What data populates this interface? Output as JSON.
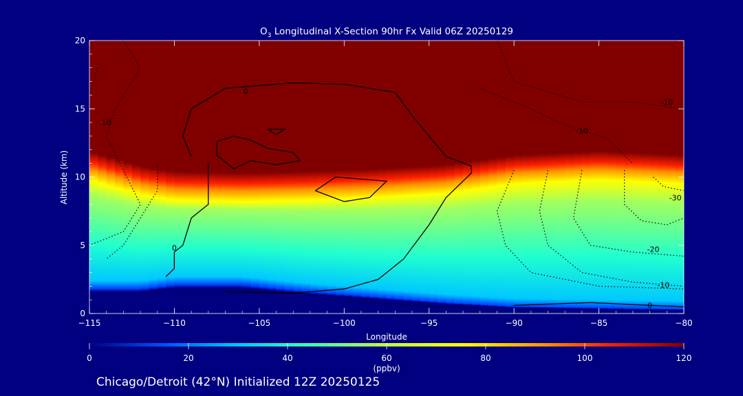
{
  "figure": {
    "title_species": "O",
    "title_sub": "3",
    "title_rest": " Longitudinal X-Section 90hr  Fx Valid 06Z 20250129",
    "footer": "Chicago/Detroit (42°N) Initialized 12Z 20250125",
    "background": "#000080"
  },
  "chart_data": {
    "type": "heatmap",
    "title": "O3 Longitudinal X-Section 90hr  Fx Valid 06Z 20250129",
    "xlabel": "Longitude",
    "ylabel": "Altitude (km)",
    "xlim": [
      -115,
      -80
    ],
    "ylim": [
      0,
      20
    ],
    "xticks": [
      -115,
      -110,
      -105,
      -100,
      -95,
      -90,
      -85,
      -80
    ],
    "xtick_labels": [
      "−115",
      "−110",
      "−105",
      "−100",
      "−95",
      "−90",
      "−85",
      "−80"
    ],
    "yticks": [
      0,
      5,
      10,
      15,
      20
    ],
    "ytick_labels": [
      "0",
      "5",
      "10",
      "15",
      "20"
    ],
    "colorbar": {
      "label": "(ppbv)",
      "min": 0,
      "max": 120,
      "ticks": [
        0,
        20,
        40,
        60,
        80,
        100,
        120
      ],
      "tick_labels": [
        "0",
        "20",
        "40",
        "60",
        "80",
        "100",
        "120"
      ],
      "colors": [
        "#000080",
        "#0050ff",
        "#00c8ff",
        "#40ffb0",
        "#c0ff40",
        "#ffff00",
        "#ffa000",
        "#ff2000",
        "#800000"
      ]
    },
    "ozone_profiles": [
      {
        "lon": -115,
        "surface": 1.8,
        "tropopause": 11.3
      },
      {
        "lon": -112,
        "surface": 1.8,
        "tropopause": 10.2
      },
      {
        "lon": -110,
        "surface": 2.1,
        "tropopause": 9.8
      },
      {
        "lon": -106,
        "surface": 2.1,
        "tropopause": 9.7
      },
      {
        "lon": -102,
        "surface": 1.6,
        "tropopause": 9.8
      },
      {
        "lon": -98,
        "surface": 1.2,
        "tropopause": 10.0
      },
      {
        "lon": -94,
        "surface": 0.8,
        "tropopause": 10.3
      },
      {
        "lon": -90,
        "surface": 0.5,
        "tropopause": 11.0
      },
      {
        "lon": -85,
        "surface": 0.4,
        "tropopause": 11.3
      },
      {
        "lon": -80,
        "surface": 0.3,
        "tropopause": 11.0
      }
    ],
    "contours": [
      {
        "label": "0",
        "style": "solid",
        "label_at": [
          -105.8,
          16.3
        ],
        "points": [
          [
            -109,
            11.5
          ],
          [
            -109.5,
            13
          ],
          [
            -109,
            15
          ],
          [
            -107,
            16.5
          ],
          [
            -103,
            16.9
          ],
          [
            -100,
            16.8
          ],
          [
            -97,
            16.2
          ],
          [
            -96,
            14.5
          ],
          [
            -95,
            13
          ],
          [
            -94,
            11.5
          ],
          [
            -92.5,
            10.8
          ],
          [
            -92.5,
            10.3
          ],
          [
            -94,
            8.5
          ],
          [
            -95,
            6.5
          ],
          [
            -96.5,
            4
          ],
          [
            -98,
            2.5
          ],
          [
            -100,
            1.8
          ],
          [
            -103,
            1.5
          ],
          [
            -107,
            1.6
          ]
        ]
      },
      {
        "label": "0",
        "style": "solid",
        "label_at": [
          -110,
          4.8
        ],
        "points": [
          [
            -108,
            11
          ],
          [
            -108,
            9.5
          ],
          [
            -108,
            8
          ],
          [
            -109,
            7
          ],
          [
            -109.5,
            5
          ],
          [
            -110,
            4.5
          ],
          [
            -110,
            3.3
          ],
          [
            -110.5,
            2.7
          ]
        ]
      },
      {
        "label": "",
        "style": "solid",
        "label_at": null,
        "points": [
          [
            -107.5,
            12.6
          ],
          [
            -106.5,
            13
          ],
          [
            -105.5,
            12.7
          ],
          [
            -104.5,
            12.1
          ],
          [
            -103,
            11.8
          ],
          [
            -102.6,
            11.2
          ],
          [
            -104,
            10.9
          ],
          [
            -105.5,
            11.2
          ],
          [
            -106.5,
            10.6
          ],
          [
            -107.5,
            11.6
          ],
          [
            -107.5,
            12.6
          ]
        ]
      },
      {
        "label": "",
        "style": "solid",
        "label_at": null,
        "points": [
          [
            -104.5,
            13.5
          ],
          [
            -103.5,
            13.5
          ],
          [
            -104,
            13.1
          ],
          [
            -104.5,
            13.5
          ]
        ]
      },
      {
        "label": "",
        "style": "solid",
        "label_at": null,
        "points": [
          [
            -101.7,
            9
          ],
          [
            -100.5,
            10
          ],
          [
            -97.5,
            9.7
          ],
          [
            -98.5,
            8.5
          ],
          [
            -100,
            8.2
          ],
          [
            -101.7,
            9
          ]
        ]
      },
      {
        "label": "",
        "style": "solid",
        "label_at": null,
        "points": [
          [
            -90,
            0.6
          ],
          [
            -85.5,
            0.8
          ],
          [
            -82,
            0.6
          ],
          [
            -80,
            0.5
          ]
        ]
      },
      {
        "label": "10",
        "style": "dotted",
        "label_at": [
          -114,
          14
        ],
        "points": [
          [
            -113,
            20
          ],
          [
            -112,
            18
          ],
          [
            -113.5,
            15
          ],
          [
            -114,
            13
          ],
          [
            -113,
            10.5
          ],
          [
            -112,
            8
          ],
          [
            -113,
            6
          ],
          [
            -115,
            5
          ]
        ]
      },
      {
        "label": "",
        "style": "dotted",
        "label_at": null,
        "points": [
          [
            -114.5,
            18
          ],
          [
            -115,
            16
          ]
        ]
      },
      {
        "label": "",
        "style": "dotted",
        "label_at": null,
        "points": [
          [
            -111,
            11
          ],
          [
            -111,
            9
          ],
          [
            -112,
            7
          ],
          [
            -113,
            5
          ],
          [
            -114,
            4
          ]
        ]
      },
      {
        "label": "-10",
        "style": "dotted",
        "label_at": [
          -81,
          15.5
        ],
        "points": [
          [
            -91,
            20
          ],
          [
            -90,
            17
          ],
          [
            -86,
            15.5
          ],
          [
            -83,
            15.5
          ],
          [
            -80,
            15
          ]
        ]
      },
      {
        "label": "-10",
        "style": "dotted",
        "label_at": [
          -86,
          13.4
        ],
        "points": [
          [
            -92,
            16.5
          ],
          [
            -89,
            15
          ],
          [
            -87,
            13.8
          ],
          [
            -84.5,
            12.8
          ],
          [
            -83,
            11
          ]
        ]
      },
      {
        "label": "",
        "style": "dotted",
        "label_at": null,
        "points": [
          [
            -90,
            10.5
          ],
          [
            -91,
            7.5
          ],
          [
            -90.5,
            5
          ],
          [
            -89,
            3
          ],
          [
            -85,
            2
          ],
          [
            -80,
            1.8
          ]
        ]
      },
      {
        "label": "-10",
        "style": "dotted",
        "label_at": [
          -81.2,
          2.1
        ],
        "points": [
          [
            -88,
            10.5
          ],
          [
            -88.5,
            7.5
          ],
          [
            -88,
            5
          ],
          [
            -86,
            3
          ],
          [
            -83,
            2.3
          ],
          [
            -80,
            2
          ]
        ]
      },
      {
        "label": "-20",
        "style": "dotted",
        "label_at": [
          -81.8,
          4.7
        ],
        "points": [
          [
            -86,
            10.5
          ],
          [
            -86.5,
            7
          ],
          [
            -85.5,
            5
          ],
          [
            -83,
            4.5
          ],
          [
            -80,
            4.2
          ]
        ]
      },
      {
        "label": "-30",
        "style": "dotted",
        "label_at": [
          -80.5,
          8.5
        ],
        "points": [
          [
            -83.5,
            10.5
          ],
          [
            -83.5,
            8
          ],
          [
            -82.5,
            6.8
          ],
          [
            -81,
            6.5
          ],
          [
            -80,
            7
          ]
        ]
      },
      {
        "label": "",
        "style": "dotted",
        "label_at": null,
        "points": [
          [
            -81.8,
            10
          ],
          [
            -81.2,
            9.3
          ],
          [
            -80,
            9
          ]
        ]
      },
      {
        "label": "0",
        "style": "dotted",
        "label_at": [
          -82,
          0.6
        ],
        "points": [
          [
            -100,
            0.9
          ],
          [
            -96,
            0.6
          ],
          [
            -92,
            0.4
          ]
        ]
      }
    ]
  }
}
